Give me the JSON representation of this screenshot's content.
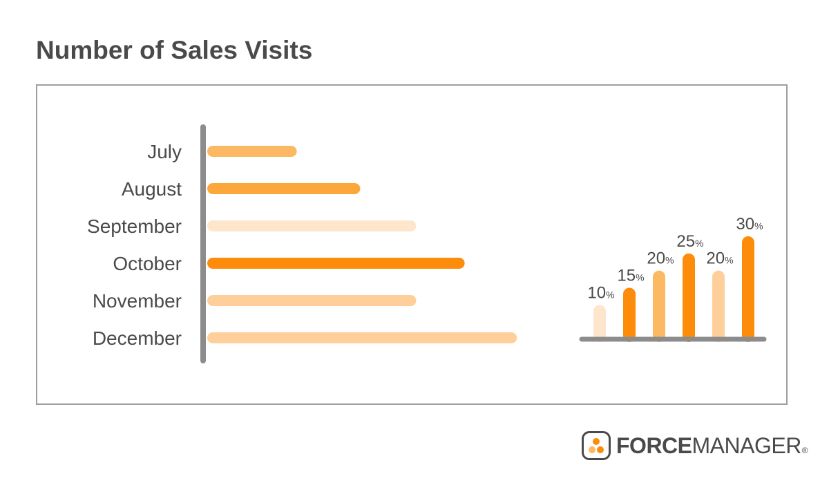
{
  "header": {
    "title": "Number of Sales Visits"
  },
  "chart_data": [
    {
      "type": "bar",
      "orientation": "horizontal",
      "title": "",
      "categories": [
        "July",
        "August",
        "September",
        "October",
        "November",
        "December"
      ],
      "values": [
        24,
        41,
        56,
        69,
        56,
        83
      ],
      "xlim": [
        0,
        100
      ],
      "colors": [
        "#FDB863",
        "#FDA63A",
        "#FDE6CC",
        "#FC8C0A",
        "#FECF9A",
        "#FECF9A"
      ],
      "grid": false,
      "legend": "none"
    },
    {
      "type": "bar",
      "orientation": "vertical",
      "title": "",
      "values": [
        10,
        15,
        20,
        25,
        20,
        30
      ],
      "value_suffix": "%",
      "ylim": [
        0,
        30
      ],
      "colors": [
        "#FDE6CC",
        "#FC8C0A",
        "#FDB863",
        "#FC8C0A",
        "#FECF9A",
        "#FC8C0A"
      ],
      "grid": false,
      "legend": "none"
    }
  ],
  "colors": {
    "axis": "#8c8c8c",
    "text": "#4a4a4a",
    "logo_dot_1": "#FC8C0A",
    "logo_dot_2": "#FDB863",
    "logo_dot_3": "#FC8C0A"
  },
  "logo": {
    "icon": "three-dots-icon",
    "text_bold": "FORCE",
    "text_regular": "MANAGER",
    "registered": "®"
  }
}
